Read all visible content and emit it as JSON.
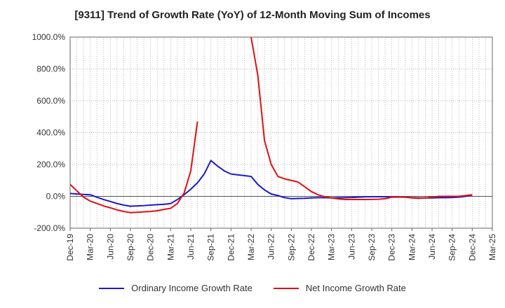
{
  "chart_data": {
    "type": "line",
    "title": "[9311]  Trend of Growth Rate (YoY) of 12-Month Moving Sum of Incomes",
    "xlabel": "",
    "ylabel": "",
    "ylim": [
      -200,
      1000
    ],
    "y_ticks": [
      "1000.0%",
      "800.0%",
      "600.0%",
      "400.0%",
      "200.0%",
      "0.0%",
      "-200.0%"
    ],
    "y_tick_values": [
      1000,
      800,
      600,
      400,
      200,
      0,
      -200
    ],
    "x_tick_labels": [
      "Dec-19",
      "Mar-20",
      "Jun-20",
      "Sep-20",
      "Dec-20",
      "Mar-21",
      "Jun-21",
      "Sep-21",
      "Dec-21",
      "Mar-22",
      "Jun-22",
      "Sep-22",
      "Dec-22",
      "Mar-23",
      "Jun-23",
      "Sep-23",
      "Dec-23",
      "Mar-24",
      "Jun-24",
      "Sep-24",
      "Dec-24",
      "Mar-25"
    ],
    "x_months": [
      "Dec-19",
      "Jan-20",
      "Feb-20",
      "Mar-20",
      "Apr-20",
      "May-20",
      "Jun-20",
      "Jul-20",
      "Aug-20",
      "Sep-20",
      "Oct-20",
      "Nov-20",
      "Dec-20",
      "Jan-21",
      "Feb-21",
      "Mar-21",
      "Apr-21",
      "May-21",
      "Jun-21",
      "Jul-21",
      "Aug-21",
      "Sep-21",
      "Oct-21",
      "Nov-21",
      "Dec-21",
      "Jan-22",
      "Feb-22",
      "Mar-22",
      "Apr-22",
      "May-22",
      "Jun-22",
      "Jul-22",
      "Aug-22",
      "Sep-22",
      "Oct-22",
      "Nov-22",
      "Dec-22",
      "Jan-23",
      "Feb-23",
      "Mar-23",
      "Apr-23",
      "May-23",
      "Jun-23",
      "Jul-23",
      "Aug-23",
      "Sep-23",
      "Oct-23",
      "Nov-23",
      "Dec-23",
      "Jan-24",
      "Feb-24",
      "Mar-24",
      "Apr-24",
      "May-24",
      "Jun-24",
      "Jul-24",
      "Aug-24",
      "Sep-24",
      "Oct-24",
      "Nov-24",
      "Dec-24",
      "Jan-25",
      "Feb-25",
      "Mar-25"
    ],
    "grid": true,
    "legend_position": "bottom",
    "series": [
      {
        "name": "Ordinary Income Growth Rate",
        "color": "#1a1acc",
        "values": [
          18,
          15,
          12,
          10,
          -5,
          -20,
          -32,
          -45,
          -55,
          -62,
          -60,
          -58,
          -55,
          -52,
          -50,
          -45,
          -20,
          10,
          45,
          85,
          140,
          225,
          190,
          160,
          140,
          135,
          130,
          125,
          75,
          40,
          15,
          5,
          -8,
          -15,
          -13,
          -12,
          -10,
          -8,
          -8,
          -10,
          -9,
          -8,
          -7,
          -5,
          -3,
          -2,
          -2,
          -3,
          -3,
          -4,
          -5,
          -8,
          -10,
          -10,
          -10,
          -8,
          -8,
          -7,
          -5,
          0,
          8,
          null,
          null,
          null
        ]
      },
      {
        "name": "Net Income Growth Rate",
        "color": "#e01010",
        "values": [
          75,
          35,
          -5,
          -30,
          -45,
          -60,
          -72,
          -85,
          -95,
          -102,
          -100,
          -97,
          -95,
          -90,
          -82,
          -75,
          -45,
          20,
          160,
          470,
          null,
          null,
          null,
          null,
          null,
          null,
          null,
          1000,
          760,
          350,
          200,
          125,
          110,
          100,
          90,
          60,
          30,
          10,
          -3,
          -10,
          -16,
          -20,
          -20,
          -20,
          -20,
          -19,
          -18,
          -15,
          -5,
          -5,
          -5,
          -10,
          -12,
          -10,
          -5,
          0,
          0,
          0,
          0,
          5,
          10,
          null,
          null,
          null
        ]
      }
    ]
  }
}
